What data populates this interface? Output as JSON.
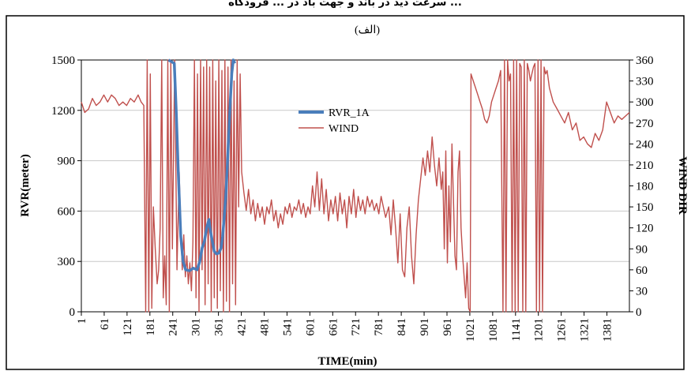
{
  "caption_top": "سرعت دید در باند و جهت باد در ... فرودگاه ...",
  "chart_data": {
    "type": "line",
    "panel_label": "(الف)",
    "xlabel": "TIME(min)",
    "ylabel_left": "RVR(meter)",
    "ylabel_right": "WIND DIR",
    "x_ticks": [
      1,
      61,
      121,
      181,
      241,
      301,
      361,
      421,
      481,
      541,
      601,
      661,
      721,
      781,
      841,
      901,
      961,
      1021,
      1081,
      1141,
      1201,
      1261,
      1321,
      1381
    ],
    "xlim": [
      1,
      1440
    ],
    "ylim_left": [
      0,
      1500
    ],
    "y_ticks_left": [
      0,
      300,
      600,
      900,
      1200,
      1500
    ],
    "ylim_right": [
      0,
      360
    ],
    "y_ticks_right": [
      0,
      30,
      60,
      90,
      120,
      150,
      180,
      210,
      240,
      270,
      300,
      330,
      360
    ],
    "grid": "horizontal",
    "legend_position": "top-center",
    "series": [
      {
        "name": "RVR_1A",
        "axis": "left",
        "color": "#4a7ebb",
        "points": [
          [
            230,
            1500
          ],
          [
            245,
            1480
          ],
          [
            250,
            1200
          ],
          [
            256,
            800
          ],
          [
            262,
            450
          ],
          [
            268,
            300
          ],
          [
            275,
            250
          ],
          [
            285,
            245
          ],
          [
            295,
            260
          ],
          [
            305,
            250
          ],
          [
            312,
            300
          ],
          [
            318,
            380
          ],
          [
            324,
            420
          ],
          [
            330,
            500
          ],
          [
            336,
            550
          ],
          [
            340,
            480
          ],
          [
            345,
            420
          ],
          [
            350,
            360
          ],
          [
            356,
            345
          ],
          [
            362,
            350
          ],
          [
            368,
            380
          ],
          [
            372,
            450
          ],
          [
            376,
            560
          ],
          [
            380,
            680
          ],
          [
            384,
            850
          ],
          [
            388,
            1050
          ],
          [
            392,
            1250
          ],
          [
            396,
            1420
          ],
          [
            400,
            1500
          ],
          [
            404,
            1480
          ]
        ]
      },
      {
        "name": "WIND",
        "axis": "right",
        "color": "#c0504d",
        "points": [
          [
            1,
            300
          ],
          [
            10,
            285
          ],
          [
            20,
            290
          ],
          [
            30,
            305
          ],
          [
            40,
            295
          ],
          [
            50,
            300
          ],
          [
            60,
            310
          ],
          [
            70,
            300
          ],
          [
            80,
            310
          ],
          [
            90,
            305
          ],
          [
            100,
            295
          ],
          [
            110,
            300
          ],
          [
            120,
            295
          ],
          [
            130,
            305
          ],
          [
            140,
            300
          ],
          [
            150,
            310
          ],
          [
            158,
            300
          ],
          [
            165,
            295
          ],
          [
            170,
            0
          ],
          [
            174,
            360
          ],
          [
            178,
            0
          ],
          [
            182,
            340
          ],
          [
            186,
            5
          ],
          [
            190,
            150
          ],
          [
            195,
            90
          ],
          [
            200,
            40
          ],
          [
            204,
            60
          ],
          [
            208,
            120
          ],
          [
            212,
            360
          ],
          [
            216,
            20
          ],
          [
            220,
            80
          ],
          [
            224,
            10
          ],
          [
            228,
            360
          ],
          [
            232,
            0
          ],
          [
            236,
            360
          ],
          [
            240,
            90
          ],
          [
            246,
            360
          ],
          [
            252,
            60
          ],
          [
            258,
            200
          ],
          [
            262,
            120
          ],
          [
            266,
            60
          ],
          [
            270,
            110
          ],
          [
            274,
            50
          ],
          [
            278,
            80
          ],
          [
            282,
            40
          ],
          [
            286,
            70
          ],
          [
            290,
            30
          ],
          [
            294,
            100
          ],
          [
            298,
            360
          ],
          [
            302,
            20
          ],
          [
            306,
            340
          ],
          [
            310,
            0
          ],
          [
            314,
            360
          ],
          [
            318,
            60
          ],
          [
            322,
            350
          ],
          [
            326,
            10
          ],
          [
            330,
            360
          ],
          [
            334,
            40
          ],
          [
            338,
            350
          ],
          [
            342,
            0
          ],
          [
            346,
            360
          ],
          [
            350,
            20
          ],
          [
            354,
            330
          ],
          [
            358,
            5
          ],
          [
            362,
            360
          ],
          [
            366,
            30
          ],
          [
            370,
            345
          ],
          [
            374,
            0
          ],
          [
            378,
            360
          ],
          [
            382,
            15
          ],
          [
            386,
            350
          ],
          [
            390,
            0
          ],
          [
            394,
            360
          ],
          [
            398,
            40
          ],
          [
            402,
            330
          ],
          [
            406,
            10
          ],
          [
            410,
            360
          ],
          [
            414,
            150
          ],
          [
            418,
            340
          ],
          [
            422,
            200
          ],
          [
            428,
            170
          ],
          [
            434,
            145
          ],
          [
            440,
            175
          ],
          [
            446,
            140
          ],
          [
            452,
            160
          ],
          [
            458,
            130
          ],
          [
            464,
            155
          ],
          [
            470,
            135
          ],
          [
            476,
            150
          ],
          [
            482,
            125
          ],
          [
            488,
            150
          ],
          [
            494,
            140
          ],
          [
            500,
            160
          ],
          [
            506,
            130
          ],
          [
            512,
            145
          ],
          [
            518,
            120
          ],
          [
            524,
            140
          ],
          [
            530,
            125
          ],
          [
            536,
            150
          ],
          [
            542,
            140
          ],
          [
            548,
            155
          ],
          [
            554,
            135
          ],
          [
            560,
            150
          ],
          [
            566,
            145
          ],
          [
            572,
            160
          ],
          [
            578,
            140
          ],
          [
            584,
            155
          ],
          [
            590,
            135
          ],
          [
            596,
            150
          ],
          [
            602,
            140
          ],
          [
            608,
            180
          ],
          [
            614,
            150
          ],
          [
            620,
            200
          ],
          [
            626,
            145
          ],
          [
            632,
            190
          ],
          [
            638,
            140
          ],
          [
            644,
            175
          ],
          [
            650,
            130
          ],
          [
            656,
            160
          ],
          [
            662,
            140
          ],
          [
            668,
            165
          ],
          [
            674,
            130
          ],
          [
            680,
            170
          ],
          [
            686,
            140
          ],
          [
            692,
            160
          ],
          [
            698,
            120
          ],
          [
            704,
            165
          ],
          [
            710,
            140
          ],
          [
            716,
            175
          ],
          [
            722,
            135
          ],
          [
            728,
            165
          ],
          [
            734,
            145
          ],
          [
            740,
            160
          ],
          [
            746,
            140
          ],
          [
            752,
            165
          ],
          [
            758,
            150
          ],
          [
            764,
            160
          ],
          [
            770,
            145
          ],
          [
            776,
            155
          ],
          [
            782,
            140
          ],
          [
            788,
            165
          ],
          [
            794,
            150
          ],
          [
            800,
            135
          ],
          [
            808,
            150
          ],
          [
            814,
            110
          ],
          [
            820,
            160
          ],
          [
            826,
            120
          ],
          [
            832,
            70
          ],
          [
            838,
            140
          ],
          [
            844,
            60
          ],
          [
            850,
            50
          ],
          [
            856,
            120
          ],
          [
            862,
            150
          ],
          [
            868,
            80
          ],
          [
            874,
            40
          ],
          [
            880,
            110
          ],
          [
            886,
            160
          ],
          [
            892,
            190
          ],
          [
            898,
            220
          ],
          [
            904,
            195
          ],
          [
            910,
            230
          ],
          [
            916,
            200
          ],
          [
            922,
            250
          ],
          [
            928,
            210
          ],
          [
            934,
            180
          ],
          [
            940,
            220
          ],
          [
            946,
            175
          ],
          [
            950,
            200
          ],
          [
            954,
            90
          ],
          [
            958,
            230
          ],
          [
            962,
            70
          ],
          [
            966,
            180
          ],
          [
            970,
            100
          ],
          [
            974,
            240
          ],
          [
            978,
            160
          ],
          [
            982,
            80
          ],
          [
            986,
            60
          ],
          [
            990,
            200
          ],
          [
            994,
            230
          ],
          [
            998,
            120
          ],
          [
            1002,
            80
          ],
          [
            1006,
            50
          ],
          [
            1010,
            20
          ],
          [
            1014,
            70
          ],
          [
            1018,
            5
          ],
          [
            1022,
            0
          ],
          [
            1024,
            340
          ],
          [
            1030,
            330
          ],
          [
            1036,
            320
          ],
          [
            1042,
            310
          ],
          [
            1048,
            300
          ],
          [
            1054,
            290
          ],
          [
            1060,
            275
          ],
          [
            1066,
            270
          ],
          [
            1072,
            280
          ],
          [
            1078,
            300
          ],
          [
            1084,
            310
          ],
          [
            1090,
            320
          ],
          [
            1096,
            330
          ],
          [
            1102,
            345
          ],
          [
            1108,
            0
          ],
          [
            1112,
            360
          ],
          [
            1116,
            0
          ],
          [
            1120,
            360
          ],
          [
            1124,
            330
          ],
          [
            1128,
            340
          ],
          [
            1132,
            0
          ],
          [
            1136,
            360
          ],
          [
            1140,
            0
          ],
          [
            1144,
            360
          ],
          [
            1148,
            0
          ],
          [
            1152,
            355
          ],
          [
            1156,
            350
          ],
          [
            1160,
            0
          ],
          [
            1164,
            360
          ],
          [
            1168,
            0
          ],
          [
            1172,
            355
          ],
          [
            1176,
            345
          ],
          [
            1180,
            330
          ],
          [
            1184,
            340
          ],
          [
            1188,
            350
          ],
          [
            1192,
            355
          ],
          [
            1196,
            0
          ],
          [
            1200,
            360
          ],
          [
            1204,
            0
          ],
          [
            1208,
            360
          ],
          [
            1212,
            0
          ],
          [
            1216,
            350
          ],
          [
            1220,
            340
          ],
          [
            1224,
            345
          ],
          [
            1230,
            320
          ],
          [
            1240,
            300
          ],
          [
            1250,
            290
          ],
          [
            1260,
            280
          ],
          [
            1270,
            270
          ],
          [
            1280,
            285
          ],
          [
            1290,
            260
          ],
          [
            1300,
            270
          ],
          [
            1310,
            245
          ],
          [
            1320,
            250
          ],
          [
            1330,
            240
          ],
          [
            1340,
            235
          ],
          [
            1350,
            255
          ],
          [
            1360,
            245
          ],
          [
            1370,
            260
          ],
          [
            1380,
            300
          ],
          [
            1390,
            285
          ],
          [
            1400,
            270
          ],
          [
            1410,
            280
          ],
          [
            1420,
            275
          ],
          [
            1430,
            280
          ],
          [
            1440,
            285
          ]
        ]
      }
    ]
  }
}
